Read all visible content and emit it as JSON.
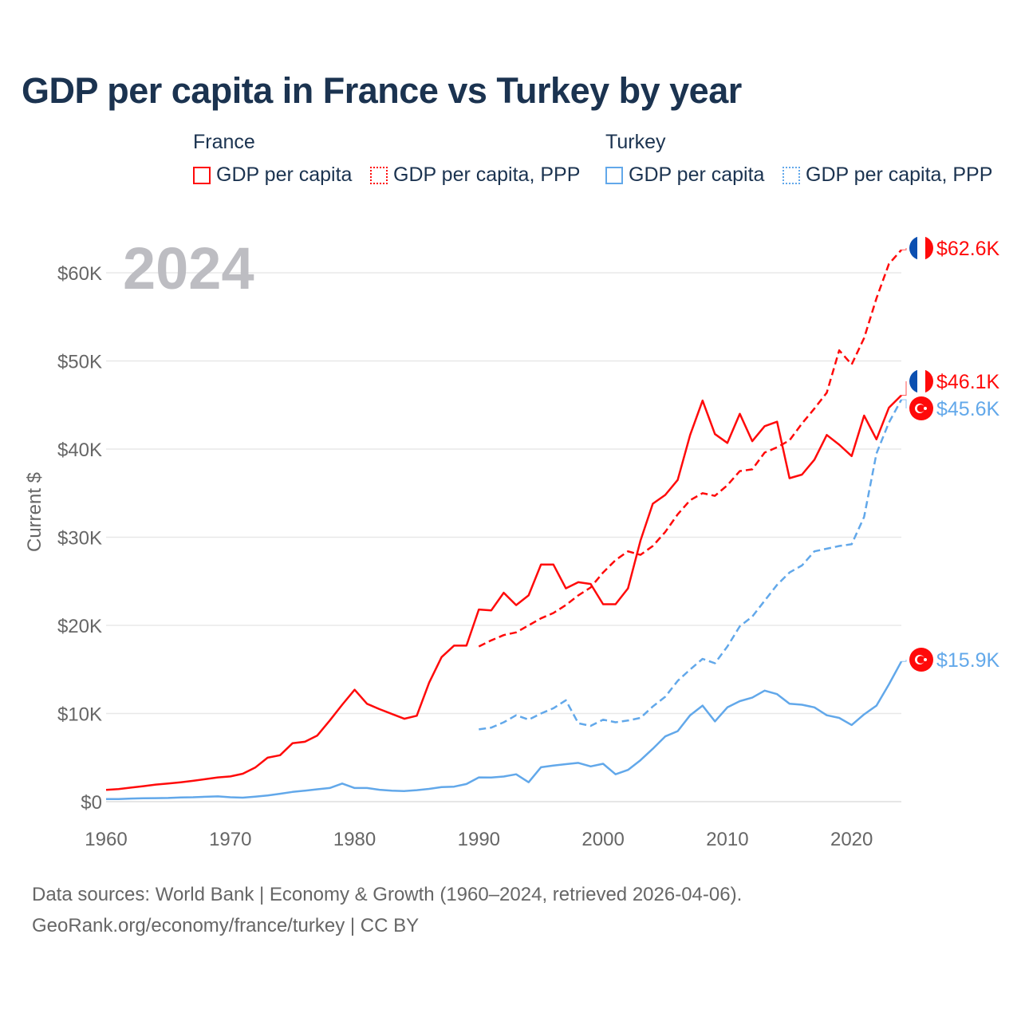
{
  "chart_data": {
    "type": "line",
    "title": "GDP per capita in France vs Turkey by year",
    "ylabel": "Current $",
    "xlabel": "",
    "year_label": "2024",
    "xlim": [
      1960,
      2024
    ],
    "ylim": [
      0,
      65000
    ],
    "x_ticks": [
      "1960",
      "1970",
      "1980",
      "1990",
      "2000",
      "2010",
      "2020"
    ],
    "y_ticks": [
      {
        "value": 0,
        "label": "$0"
      },
      {
        "value": 10000,
        "label": "$10K"
      },
      {
        "value": 20000,
        "label": "$20K"
      },
      {
        "value": 30000,
        "label": "$30K"
      },
      {
        "value": 40000,
        "label": "$40K"
      },
      {
        "value": 50000,
        "label": "$50K"
      },
      {
        "value": 60000,
        "label": "$60K"
      }
    ],
    "grid": true,
    "legend": {
      "placement": "top",
      "groups": [
        {
          "name": "France",
          "items": [
            "GDP per capita",
            "GDP per capita, PPP"
          ]
        },
        {
          "name": "Turkey",
          "items": [
            "GDP per capita",
            "GDP per capita, PPP"
          ]
        }
      ]
    },
    "series": [
      {
        "name": "France GDP per capita",
        "country": "France",
        "color": "#ff0a0a",
        "dash": false,
        "start": 1960,
        "end_label": "$46.1K",
        "values": [
          1340,
          1430,
          1590,
          1760,
          1940,
          2050,
          2200,
          2360,
          2550,
          2750,
          2860,
          3170,
          3860,
          4990,
          5270,
          6620,
          6800,
          7500,
          9200,
          11000,
          12700,
          11100,
          10500,
          9950,
          9400,
          9750,
          13500,
          16400,
          17700,
          17700,
          21800,
          21700,
          23700,
          22300,
          23400,
          26900,
          26900,
          24200,
          24900,
          24700,
          22400,
          22400,
          24200,
          29600,
          33800,
          34800,
          36500,
          41600,
          45500,
          41700,
          40700,
          44000,
          40900,
          42600,
          43100,
          36700,
          37100,
          38800,
          41600,
          40500,
          39200,
          43800,
          41100,
          44700,
          46100
        ]
      },
      {
        "name": "France GDP per capita, PPP",
        "country": "France",
        "color": "#ff0a0a",
        "dash": true,
        "start": 1990,
        "end_label": "$62.6K",
        "values": [
          17600,
          18300,
          18900,
          19200,
          20000,
          20800,
          21400,
          22300,
          23400,
          24300,
          26000,
          27400,
          28400,
          28000,
          29000,
          30600,
          32600,
          34200,
          35000,
          34700,
          35900,
          37500,
          37700,
          39600,
          40200,
          41000,
          42900,
          44600,
          46400,
          51200,
          49600,
          52600,
          57100,
          61000,
          62600
        ]
      },
      {
        "name": "Turkey GDP per capita",
        "country": "Turkey",
        "color": "#62a8ea",
        "dash": false,
        "start": 1960,
        "end_label": "$15.9K",
        "values": [
          300,
          300,
          350,
          380,
          400,
          420,
          480,
          500,
          550,
          600,
          500,
          450,
          570,
          700,
          900,
          1100,
          1250,
          1400,
          1550,
          2050,
          1550,
          1550,
          1350,
          1250,
          1200,
          1300,
          1450,
          1650,
          1700,
          2000,
          2750,
          2730,
          2850,
          3100,
          2200,
          3900,
          4100,
          4250,
          4400,
          4000,
          4300,
          3100,
          3600,
          4700,
          6000,
          7400,
          8000,
          9800,
          10900,
          9100,
          10700,
          11400,
          11800,
          12600,
          12200,
          11100,
          11000,
          10700,
          9800,
          9500,
          8700,
          9900,
          10900,
          13300,
          15900
        ]
      },
      {
        "name": "Turkey GDP per capita, PPP",
        "country": "Turkey",
        "color": "#62a8ea",
        "dash": true,
        "start": 1990,
        "end_label": "$45.6K",
        "values": [
          8200,
          8400,
          9000,
          9800,
          9300,
          10000,
          10600,
          11500,
          8900,
          8600,
          9300,
          9000,
          9200,
          9500,
          10800,
          11900,
          13700,
          15000,
          16200,
          15700,
          17600,
          19900,
          21000,
          22800,
          24600,
          26000,
          26800,
          28400,
          28700,
          29000,
          29200,
          32300,
          39500,
          43000,
          45600
        ]
      }
    ]
  },
  "footer": {
    "line1": "Data sources: World Bank | Economy & Growth (1960–2024, retrieved 2026-04-06).",
    "line2": "GeoRank.org/economy/france/turkey | CC BY"
  },
  "colors": {
    "france": "#ff0a0a",
    "turkey": "#62a8ea",
    "title": "#1b3350",
    "flag_blue": "#0b4fb0"
  }
}
